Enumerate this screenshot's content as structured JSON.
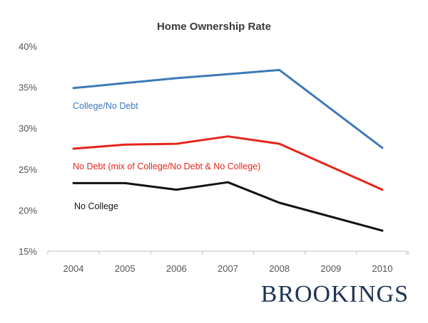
{
  "chart_data": {
    "type": "line",
    "title": "Home Ownership Rate",
    "xlabel": "",
    "ylabel": "",
    "x": [
      2004,
      2005,
      2006,
      2007,
      2008,
      2009,
      2010
    ],
    "x_tick_labels": [
      "2004",
      "2005",
      "2006",
      "2007",
      "2008",
      "2009",
      "2010"
    ],
    "ylim": [
      15,
      40
    ],
    "y_ticks": [
      15,
      20,
      25,
      30,
      35,
      40
    ],
    "y_tick_labels": [
      "15%",
      "20%",
      "25%",
      "30%",
      "35%",
      "40%"
    ],
    "grid": false,
    "series": [
      {
        "name": "College/No Debt",
        "color": "#3d7ab8",
        "x": [
          2004,
          2005,
          2006,
          2007,
          2008,
          2010
        ],
        "values": [
          34.9,
          35.5,
          36.1,
          36.6,
          37.1,
          27.6
        ]
      },
      {
        "name": "No Debt (mix of College/No Debt & No College)",
        "color": "#e4251c",
        "x": [
          2004,
          2005,
          2006,
          2007,
          2008,
          2010
        ],
        "values": [
          27.5,
          28.0,
          28.1,
          29.0,
          28.1,
          22.5
        ]
      },
      {
        "name": "No College",
        "color": "#111111",
        "x": [
          2004,
          2005,
          2006,
          2007,
          2008,
          2010
        ],
        "values": [
          23.3,
          23.3,
          22.5,
          23.4,
          20.9,
          17.5
        ]
      }
    ]
  },
  "brand": {
    "text": "BROOKINGS",
    "color": "#1d3454"
  }
}
